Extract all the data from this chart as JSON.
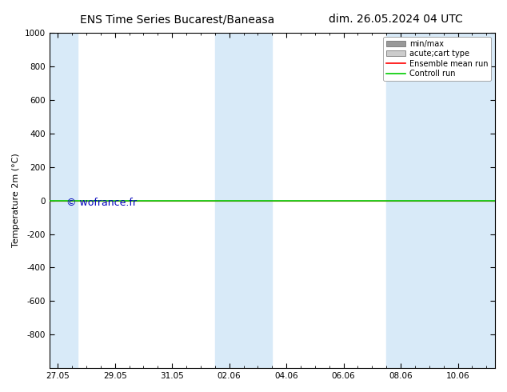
{
  "title_left": "ENS Time Series Bucarest/Baneasa",
  "title_right": "dim. 26.05.2024 04 UTC",
  "ylabel": "Temperature 2m (°C)",
  "ylim_bottom": -1000,
  "ylim_top": 1000,
  "yticks": [
    -800,
    -600,
    -400,
    -200,
    0,
    200,
    400,
    600,
    800,
    1000
  ],
  "xtick_labels": [
    "27.05",
    "29.05",
    "31.05",
    "02.06",
    "04.06",
    "06.06",
    "08.06",
    "10.06"
  ],
  "xtick_positions": [
    0.0,
    2.0,
    4.0,
    6.0,
    8.0,
    10.0,
    12.0,
    14.0
  ],
  "xmin": -0.3,
  "xmax": 15.3,
  "shaded_bands": [
    {
      "xmin": -0.3,
      "xmax": 0.7
    },
    {
      "xmin": 5.5,
      "xmax": 7.5
    },
    {
      "xmin": 11.5,
      "xmax": 15.3
    }
  ],
  "band_color": "#d8eaf8",
  "hline_y": 0,
  "hline_color_green": "#00cc00",
  "hline_color_red": "#ff0000",
  "hline_lw_green": 1.2,
  "hline_lw_red": 0.8,
  "legend_items": [
    {
      "label": "min/max",
      "color": "#999999",
      "lw": 6,
      "type": "patch"
    },
    {
      "label": "acute;cart type",
      "color": "#cccccc",
      "lw": 6,
      "type": "patch"
    },
    {
      "label": "Ensemble mean run",
      "color": "#ff0000",
      "lw": 1.2,
      "type": "line"
    },
    {
      "label": "Controll run",
      "color": "#00cc00",
      "lw": 1.2,
      "type": "line"
    }
  ],
  "watermark": "© wofrance.fr",
  "watermark_color": "#0000bb",
  "watermark_fontsize": 9,
  "bg_color": "#ffffff",
  "plot_bg_color": "#ffffff",
  "title_fontsize": 10,
  "tick_fontsize": 7.5,
  "ylabel_fontsize": 8,
  "legend_fontsize": 7
}
